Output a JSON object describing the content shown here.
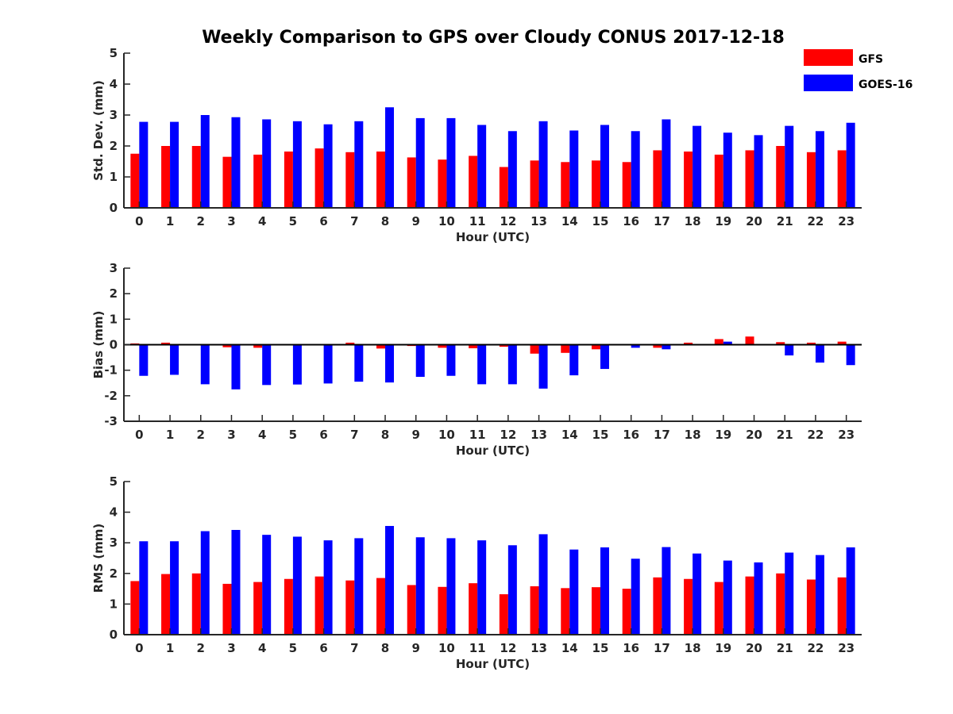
{
  "chart_data": {
    "title": "Weekly Comparison to GPS over Cloudy CONUS 2017-12-18",
    "legend": {
      "placement": "top-right",
      "entries": [
        {
          "name": "GFS",
          "color": "#ff0000"
        },
        {
          "name": "GOES-16",
          "color": "#0000ff"
        }
      ]
    },
    "categories": [
      "0",
      "1",
      "2",
      "3",
      "4",
      "5",
      "6",
      "7",
      "8",
      "9",
      "10",
      "11",
      "12",
      "13",
      "14",
      "15",
      "16",
      "17",
      "18",
      "19",
      "20",
      "21",
      "22",
      "23"
    ],
    "panels": [
      {
        "type": "bar",
        "xlabel": "Hour (UTC)",
        "ylabel": "Std. Dev. (mm)",
        "ylim": [
          0,
          5
        ],
        "yticks": [
          "0",
          "1",
          "2",
          "3",
          "4",
          "5"
        ],
        "series": [
          {
            "name": "GFS",
            "color": "#ff0000",
            "values": [
              1.75,
              2.0,
              2.0,
              1.65,
              1.72,
              1.82,
              1.92,
              1.8,
              1.82,
              1.63,
              1.56,
              1.68,
              1.32,
              1.53,
              1.48,
              1.53,
              1.48,
              1.86,
              1.82,
              1.72,
              1.86,
              2.0,
              1.8,
              1.86
            ]
          },
          {
            "name": "GOES-16",
            "color": "#0000ff",
            "values": [
              2.78,
              2.78,
              3.0,
              2.93,
              2.86,
              2.8,
              2.7,
              2.8,
              3.25,
              2.9,
              2.9,
              2.68,
              2.48,
              2.8,
              2.5,
              2.68,
              2.48,
              2.86,
              2.65,
              2.43,
              2.35,
              2.65,
              2.48,
              2.75
            ]
          }
        ]
      },
      {
        "type": "bar",
        "xlabel": "Hour (UTC)",
        "ylabel": "Bias (mm)",
        "ylim": [
          -3,
          3
        ],
        "yticks": [
          "-3",
          "-2",
          "-1",
          "0",
          "1",
          "2",
          "3"
        ],
        "series": [
          {
            "name": "GFS",
            "color": "#ff0000",
            "values": [
              0.05,
              0.08,
              0.0,
              -0.1,
              -0.12,
              -0.03,
              0.0,
              0.08,
              -0.15,
              -0.05,
              -0.12,
              -0.14,
              -0.08,
              -0.35,
              -0.32,
              -0.18,
              -0.02,
              -0.12,
              0.08,
              0.22,
              0.32,
              0.1,
              0.08,
              0.12
            ]
          },
          {
            "name": "GOES-16",
            "color": "#0000ff",
            "values": [
              -1.22,
              -1.18,
              -1.55,
              -1.75,
              -1.58,
              -1.56,
              -1.52,
              -1.45,
              -1.48,
              -1.26,
              -1.22,
              -1.55,
              -1.55,
              -1.72,
              -1.2,
              -0.95,
              -0.12,
              -0.18,
              0.02,
              0.12,
              -0.02,
              -0.42,
              -0.7,
              -0.8
            ]
          }
        ]
      },
      {
        "type": "bar",
        "xlabel": "Hour (UTC)",
        "ylabel": "RMS (mm)",
        "ylim": [
          0,
          5
        ],
        "yticks": [
          "0",
          "1",
          "2",
          "3",
          "4",
          "5"
        ],
        "series": [
          {
            "name": "GFS",
            "color": "#ff0000",
            "values": [
              1.75,
              1.98,
              2.0,
              1.66,
              1.72,
              1.82,
              1.9,
              1.77,
              1.85,
              1.62,
              1.56,
              1.68,
              1.32,
              1.58,
              1.52,
              1.55,
              1.5,
              1.87,
              1.82,
              1.72,
              1.9,
              2.0,
              1.8,
              1.87
            ]
          },
          {
            "name": "GOES-16",
            "color": "#0000ff",
            "values": [
              3.05,
              3.05,
              3.38,
              3.42,
              3.26,
              3.2,
              3.08,
              3.15,
              3.55,
              3.18,
              3.15,
              3.08,
              2.92,
              3.28,
              2.78,
              2.85,
              2.48,
              2.86,
              2.65,
              2.42,
              2.36,
              2.68,
              2.6,
              2.85
            ]
          }
        ]
      }
    ]
  }
}
